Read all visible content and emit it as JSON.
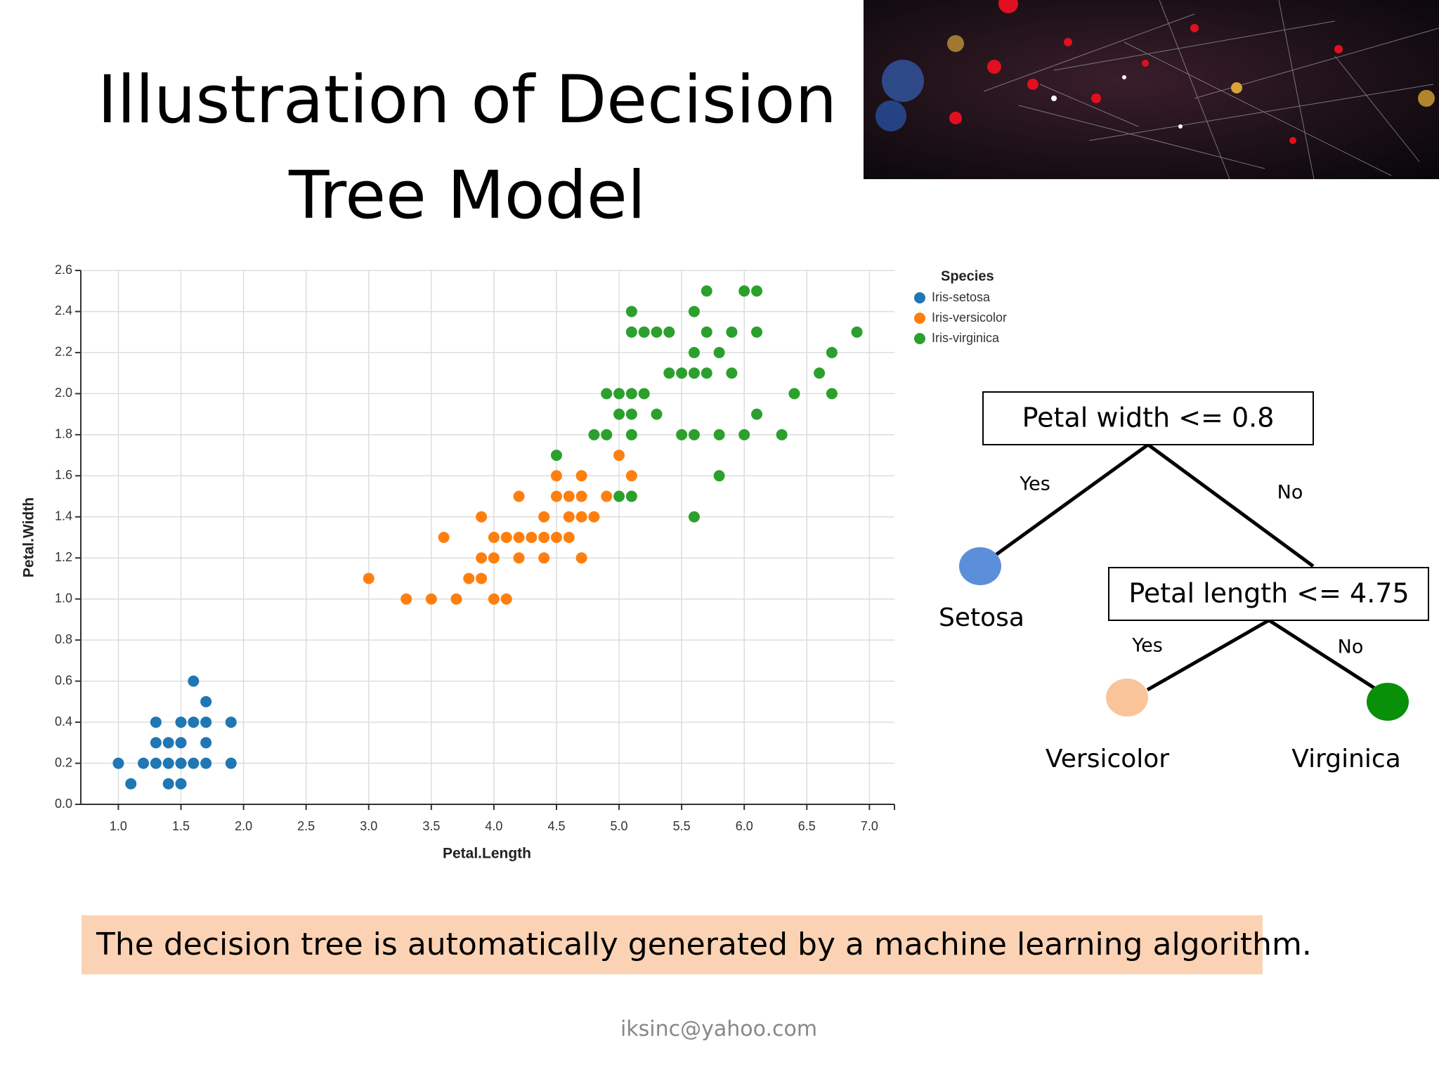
{
  "title": "Illustration of Decision Tree Model",
  "chart_data": {
    "type": "scatter",
    "x_label": "Petal.Length",
    "y_label": "Petal.Width",
    "legend_title": "Species",
    "xlim": [
      0.7,
      7.2
    ],
    "ylim": [
      0,
      2.6
    ],
    "xticks": [
      {
        "value": 1,
        "label": "1.0"
      },
      1.5,
      {
        "value": 2,
        "label": "2.0"
      },
      2.5,
      {
        "value": 3,
        "label": "3.0"
      },
      3.5,
      {
        "value": 4,
        "label": "4.0"
      },
      4.5,
      {
        "value": 5,
        "label": "5.0"
      },
      5.5,
      {
        "value": 6,
        "label": "6.0"
      },
      6.5,
      {
        "value": 7,
        "label": "7.0"
      }
    ],
    "yticks": [
      {
        "value": 0,
        "label": "0.0"
      },
      0.2,
      0.4,
      0.6,
      0.8,
      {
        "value": 1,
        "label": "1.0"
      },
      1.2,
      1.4,
      1.6,
      1.8,
      {
        "value": 2,
        "label": "2.0"
      },
      2.2,
      2.4,
      2.6
    ],
    "grid": true,
    "series": [
      {
        "name": "Iris-setosa",
        "color": "#1f77b4",
        "x": [
          1.6,
          1.7,
          1.3,
          1.5,
          1.6,
          1.7,
          1.9,
          1.3,
          1.4,
          1.5,
          1.7,
          1.0,
          1.2,
          1.3,
          1.4,
          1.5,
          1.6,
          1.7,
          1.9,
          1.1,
          1.4,
          1.5
        ],
        "y": [
          0.6,
          0.5,
          0.4,
          0.4,
          0.4,
          0.4,
          0.4,
          0.3,
          0.3,
          0.3,
          0.3,
          0.2,
          0.2,
          0.2,
          0.2,
          0.2,
          0.2,
          0.2,
          0.2,
          0.1,
          0.1,
          0.1
        ]
      },
      {
        "name": "Iris-versicolor",
        "color": "#ff7f0e",
        "x": [
          3.3,
          3.5,
          3.7,
          4.0,
          4.1,
          3.0,
          3.8,
          3.9,
          3.9,
          4.0,
          4.2,
          4.4,
          4.7,
          3.6,
          4.0,
          4.1,
          4.2,
          4.3,
          4.4,
          4.5,
          4.6,
          3.9,
          4.4,
          4.6,
          4.7,
          4.8,
          4.2,
          4.5,
          4.6,
          4.7,
          4.9,
          4.5,
          4.7,
          5.1,
          5.0
        ],
        "y": [
          1.0,
          1.0,
          1.0,
          1.0,
          1.0,
          1.1,
          1.1,
          1.1,
          1.2,
          1.2,
          1.2,
          1.2,
          1.2,
          1.3,
          1.3,
          1.3,
          1.3,
          1.3,
          1.3,
          1.3,
          1.3,
          1.4,
          1.4,
          1.4,
          1.4,
          1.4,
          1.5,
          1.5,
          1.5,
          1.5,
          1.5,
          1.6,
          1.6,
          1.6,
          1.7
        ]
      },
      {
        "name": "Iris-virginica",
        "color": "#2ca02c",
        "x": [
          5.6,
          5.0,
          5.1,
          5.8,
          4.5,
          4.8,
          4.9,
          5.1,
          5.5,
          5.6,
          5.8,
          6.0,
          6.3,
          5.0,
          5.1,
          5.3,
          6.1,
          4.9,
          5.0,
          5.1,
          5.2,
          6.4,
          6.7,
          5.4,
          5.5,
          5.6,
          5.7,
          5.9,
          6.6,
          5.6,
          5.8,
          6.7,
          5.1,
          5.2,
          5.3,
          5.4,
          5.7,
          5.9,
          6.1,
          6.9,
          5.1,
          5.6,
          5.7,
          6.0,
          6.1
        ],
        "y": [
          1.4,
          1.5,
          1.5,
          1.6,
          1.7,
          1.8,
          1.8,
          1.8,
          1.8,
          1.8,
          1.8,
          1.8,
          1.8,
          1.9,
          1.9,
          1.9,
          1.9,
          2.0,
          2.0,
          2.0,
          2.0,
          2.0,
          2.0,
          2.1,
          2.1,
          2.1,
          2.1,
          2.1,
          2.1,
          2.2,
          2.2,
          2.2,
          2.3,
          2.3,
          2.3,
          2.3,
          2.3,
          2.3,
          2.3,
          2.3,
          2.4,
          2.4,
          2.5,
          2.5,
          2.5
        ]
      }
    ]
  },
  "tree": {
    "root": "Petal width <= 0.8",
    "split": "Petal length <= 4.75",
    "leaves": [
      "Setosa",
      "Versicolor",
      "Virginica"
    ],
    "edge_labels": [
      "Yes",
      "No",
      "Yes",
      "No"
    ]
  },
  "caption": "The decision tree is automatically generated by a machine learning algorithm.",
  "footer": "iksinc@yahoo.com"
}
